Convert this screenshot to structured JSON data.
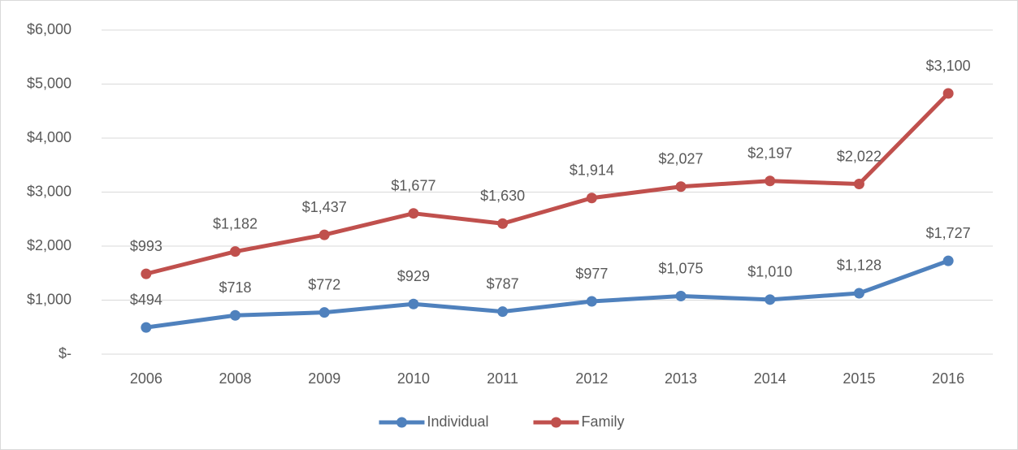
{
  "chart_data": {
    "type": "line",
    "stacked": true,
    "categories": [
      "2006",
      "2008",
      "2009",
      "2010",
      "2011",
      "2012",
      "2013",
      "2014",
      "2015",
      "2016"
    ],
    "series": [
      {
        "name": "Individual",
        "color": "#4f81bd",
        "values": [
          494,
          718,
          772,
          929,
          787,
          977,
          1075,
          1010,
          1128,
          1727
        ],
        "value_labels": [
          "$494",
          "$718",
          "$772",
          "$929",
          "$787",
          "$977",
          "$1,075",
          "$1,010",
          "$1,128",
          "$1,727"
        ]
      },
      {
        "name": "Family",
        "color": "#c0504d",
        "values": [
          993,
          1182,
          1437,
          1677,
          1630,
          1914,
          2027,
          2197,
          2022,
          3100
        ],
        "value_labels": [
          "$993",
          "$1,182",
          "$1,437",
          "$1,677",
          "$1,630",
          "$1,914",
          "$2,027",
          "$2,197",
          "$2,022",
          "$3,100"
        ]
      }
    ],
    "ylim": [
      0,
      6000
    ],
    "yticks": [
      {
        "value": 0,
        "label": "$-"
      },
      {
        "value": 1000,
        "label": "$1,000"
      },
      {
        "value": 2000,
        "label": "$2,000"
      },
      {
        "value": 3000,
        "label": "$3,000"
      },
      {
        "value": 4000,
        "label": "$4,000"
      },
      {
        "value": 5000,
        "label": "$5,000"
      },
      {
        "value": 6000,
        "label": "$6,000"
      }
    ],
    "grid": true,
    "legend": "bottom"
  }
}
